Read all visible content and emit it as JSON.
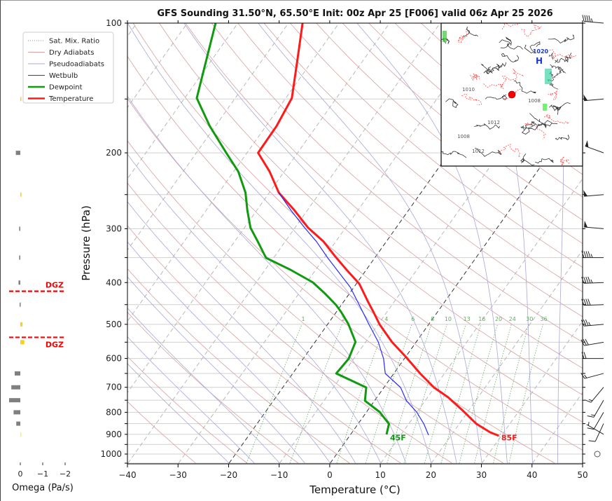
{
  "chart_data": {
    "type": "line",
    "title": "GFS Sounding 31.50°N, 65.50°E Init: 00z Apr 25 [F006] valid 06z Apr 25 2026",
    "xlabel": "Temperature (°C)",
    "ylabel": "Pressure (hPa)",
    "xlim": [
      -40,
      50
    ],
    "ylim": [
      1050,
      100
    ],
    "xticks": [
      "−40",
      "−30",
      "−20",
      "−10",
      "0",
      "10",
      "20",
      "30",
      "40",
      "50"
    ],
    "yticks": [
      "100",
      "200",
      "300",
      "400",
      "500",
      "600",
      "700",
      "800",
      "900",
      "1000"
    ],
    "grid": true,
    "legend_position": "top-left",
    "legend": [
      {
        "label": "Sat. Mix. Ratio",
        "color": "#6aa96a",
        "style": "dotted"
      },
      {
        "label": "Dry Adiabats",
        "color": "#d9a0a0",
        "style": "solid"
      },
      {
        "label": "Pseudoadiabats",
        "color": "#a8a8d8",
        "style": "solid"
      },
      {
        "label": "Wetbulb",
        "color": "#2a2aff",
        "style": "solid"
      },
      {
        "label": "Dewpoint",
        "color": "#109a10",
        "style": "bold"
      },
      {
        "label": "Temperature",
        "color": "#ff1a1a",
        "style": "bold"
      }
    ],
    "series": [
      {
        "name": "Temperature",
        "color": "#ff1a1a",
        "p": [
          100,
          121.5,
          149.3,
          173.4,
          200,
          221,
          247.5,
          271.6,
          298.4,
          321.4,
          346.7,
          373.6,
          402.7,
          442,
          467.7,
          500.3,
          549.4,
          596.6,
          650.1,
          700.8,
          738.6,
          789.9,
          851,
          890.5,
          907
        ],
        "t": [
          -67.2,
          -63.1,
          -58.8,
          -57.9,
          -57.8,
          -52.9,
          -48.1,
          -42.6,
          -37.4,
          -32.4,
          -28.2,
          -23.9,
          -19.4,
          -15.3,
          -12.7,
          -9.7,
          -4.8,
          0.2,
          5.2,
          9.9,
          14.1,
          18.6,
          23.4,
          27.3,
          29.5
        ]
      },
      {
        "name": "Dewpoint",
        "color": "#109a10",
        "p": [
          100,
          121.5,
          149.3,
          173.4,
          200,
          221,
          247.5,
          271.6,
          298.4,
          321.4,
          350.5,
          373.6,
          399.6,
          425.7,
          450.5,
          467.7,
          498.4,
          549.4,
          601,
          650.1,
          700.8,
          752,
          798.7,
          851,
          900.6
        ],
        "t": [
          -84.4,
          -81.1,
          -77.6,
          -71.1,
          -64.1,
          -59.1,
          -54.7,
          -51.9,
          -48.8,
          -45.4,
          -41.5,
          -35,
          -28.8,
          -24.6,
          -21.1,
          -19.1,
          -16,
          -12,
          -11,
          -11.4,
          -3.5,
          -1.9,
          2.6,
          6.1,
          7.1
        ]
      },
      {
        "name": "Wetbulb",
        "color": "#2a2aff",
        "p": [
          247.5,
          271.6,
          298.4,
          321.4,
          350.5,
          380.6,
          410.2,
          467.7,
          500.3,
          549.4,
          601,
          650.1,
          700.8,
          752,
          798.7,
          851,
          903.6
        ],
        "t": [
          -48.1,
          -43.3,
          -38.1,
          -33.8,
          -29.3,
          -24.8,
          -20.7,
          -14.8,
          -11.8,
          -7.5,
          -4.1,
          -1.7,
          3.3,
          6.3,
          9.9,
          13,
          15.5
        ]
      }
    ],
    "mixing_ratio_labels": [
      "1",
      "2",
      "4",
      "6",
      "8",
      "10",
      "13",
      "16",
      "20",
      "24",
      "30",
      "36"
    ],
    "mixing_ratio_values": [
      1,
      2,
      4,
      6,
      8,
      10,
      13,
      16,
      20,
      24,
      30,
      36
    ],
    "annotations": [
      {
        "text": "45F",
        "p": 940,
        "t": 9.5,
        "color": "#109a10"
      },
      {
        "text": "85F",
        "p": 940,
        "t": 31.5,
        "color": "#ff1a1a"
      }
    ],
    "wind_barbs": [
      {
        "p": 100,
        "dir": 275,
        "kt": 45
      },
      {
        "p": 150,
        "dir": 265,
        "kt": 50
      },
      {
        "p": 200,
        "dir": 290,
        "kt": 50
      },
      {
        "p": 250,
        "dir": 265,
        "kt": 50
      },
      {
        "p": 300,
        "dir": 275,
        "kt": 50
      },
      {
        "p": 350,
        "dir": 270,
        "kt": 45
      },
      {
        "p": 400,
        "dir": 268,
        "kt": 45
      },
      {
        "p": 450,
        "dir": 268,
        "kt": 40
      },
      {
        "p": 500,
        "dir": 265,
        "kt": 35
      },
      {
        "p": 550,
        "dir": 260,
        "kt": 30
      },
      {
        "p": 600,
        "dir": 270,
        "kt": 20
      },
      {
        "p": 650,
        "dir": 255,
        "kt": 15
      },
      {
        "p": 700,
        "dir": 220,
        "kt": 15
      },
      {
        "p": 750,
        "dir": 210,
        "kt": 15
      },
      {
        "p": 800,
        "dir": 210,
        "kt": 10
      },
      {
        "p": 850,
        "dir": 205,
        "kt": 10
      },
      {
        "p": 900,
        "dir": 300,
        "kt": 5
      },
      {
        "p": 1000,
        "dir": 0,
        "kt": 0
      }
    ],
    "omega": {
      "xlabel": "Omega (Pa/s)",
      "xticks": [
        {
          "v": 0,
          "label": "0"
        },
        {
          "v": -1,
          "label": "−1"
        },
        {
          "v": -2,
          "label": "−2"
        }
      ],
      "dgz_label": "DGZ",
      "dgz_p": [
        419,
        536
      ],
      "bars": [
        {
          "p": 150,
          "v": -0.02,
          "color": "#f5d21c"
        },
        {
          "p": 200,
          "v": 0.2,
          "color": "#808080"
        },
        {
          "p": 250,
          "v": -0.05,
          "color": "#f5d21c"
        },
        {
          "p": 300,
          "v": 0.05,
          "color": "#808080"
        },
        {
          "p": 350,
          "v": 0.05,
          "color": "#808080"
        },
        {
          "p": 400,
          "v": 0.08,
          "color": "#808080"
        },
        {
          "p": 450,
          "v": 0.03,
          "color": "#808080"
        },
        {
          "p": 500,
          "v": -0.1,
          "color": "#f5d21c"
        },
        {
          "p": 550,
          "v": -0.18,
          "color": "#f5d21c"
        },
        {
          "p": 650,
          "v": 0.25,
          "color": "#808080"
        },
        {
          "p": 700,
          "v": 0.4,
          "color": "#808080"
        },
        {
          "p": 750,
          "v": 0.5,
          "color": "#808080"
        },
        {
          "p": 800,
          "v": 0.3,
          "color": "#808080"
        },
        {
          "p": 850,
          "v": 0.18,
          "color": "#808080"
        },
        {
          "p": 900,
          "v": -0.04,
          "color": "#f5f06a"
        }
      ]
    },
    "inset_map": {
      "high_label": "H",
      "high_value": "1020",
      "isobar_labels": [
        "1008",
        "1010",
        "1012",
        "1008",
        "1012"
      ],
      "location_marker_color": "#ff0000"
    }
  }
}
